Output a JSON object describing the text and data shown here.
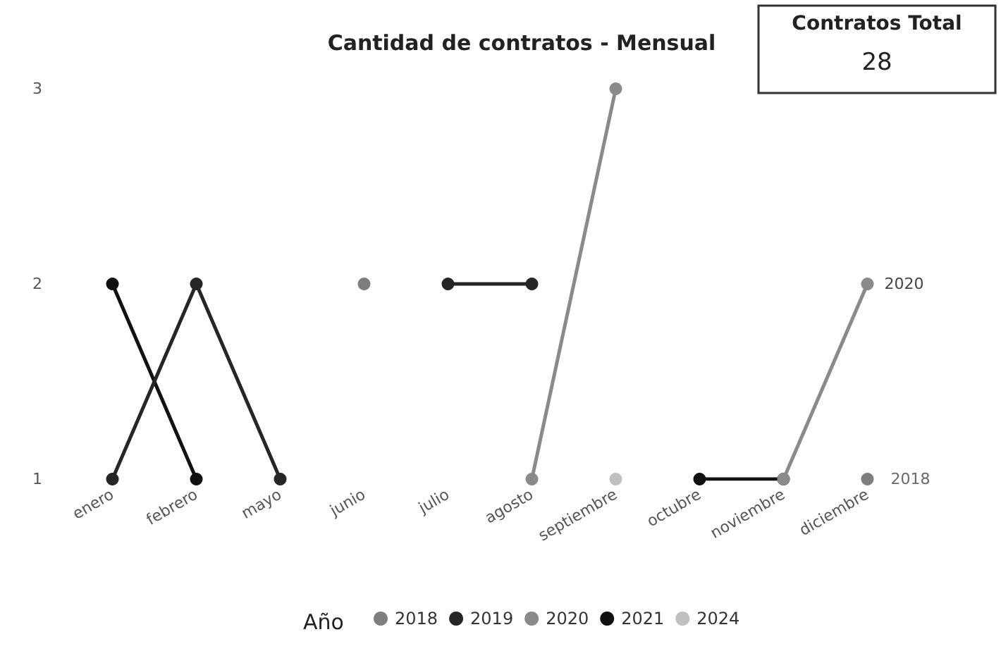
{
  "chart_data": {
    "type": "line",
    "title": "Cantidad de contratos - Mensual",
    "categories": [
      "enero",
      "febrero",
      "mayo",
      "junio",
      "julio",
      "agosto",
      "septiembre",
      "octubre",
      "noviembre",
      "diciembre"
    ],
    "series": [
      {
        "name": "2018",
        "type": "scatter",
        "color": "#5e5e5e",
        "values": [
          null,
          null,
          null,
          2,
          null,
          null,
          null,
          null,
          null,
          1
        ]
      },
      {
        "name": "2019",
        "color": "#262626",
        "values": [
          1,
          2,
          1,
          null,
          2,
          2,
          null,
          null,
          null,
          null
        ]
      },
      {
        "name": "2020",
        "color": "#8a8a8a",
        "values": [
          null,
          null,
          null,
          null,
          null,
          1,
          3,
          null,
          1,
          2
        ]
      },
      {
        "name": "2021",
        "color": "#111111",
        "values": [
          2,
          1,
          null,
          null,
          null,
          null,
          null,
          1,
          1,
          null
        ]
      },
      {
        "name": "2024",
        "color": "#c0c0c0",
        "values": [
          null,
          null,
          null,
          null,
          null,
          null,
          1,
          null,
          null,
          null
        ]
      }
    ],
    "legend_title": "Año",
    "legend": "bottom",
    "marker": "circle",
    "grid": false,
    "ylim": [
      1,
      3
    ],
    "yticks": [
      1,
      2,
      3
    ],
    "annotations": [
      "Contratos Total",
      "28"
    ]
  }
}
